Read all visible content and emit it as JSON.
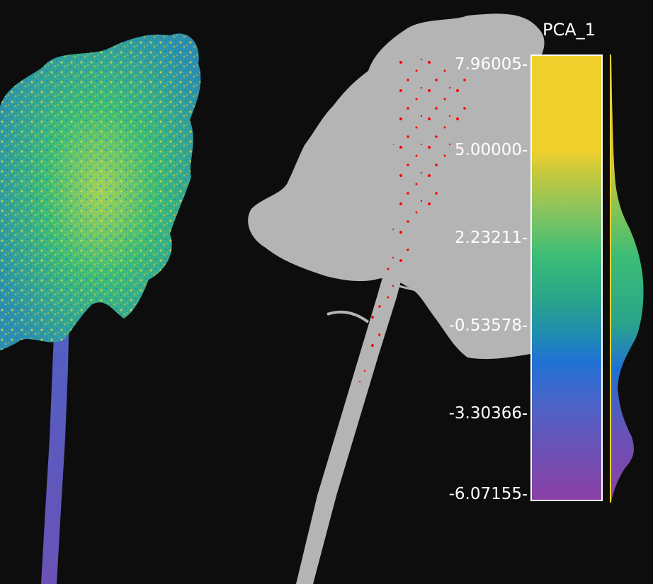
{
  "scalar_field": {
    "title": "PCA_1",
    "ticks": [
      "7.96005",
      "5.00000",
      "2.23211",
      "-0.53578",
      "-3.30366",
      "-6.07155"
    ]
  },
  "colors": {
    "background": "#0d0d0d",
    "unselected_points": "#b4b4b4",
    "selected_points": "#ff0000",
    "colormap_high": "#f2d02c",
    "colormap_mid": "#3cbd76",
    "colormap_low": "#8a40a6"
  },
  "icons": {
    "tree_colored": "point-cloud-tree-colored",
    "tree_selected": "point-cloud-tree-gray-with-red-selection"
  }
}
